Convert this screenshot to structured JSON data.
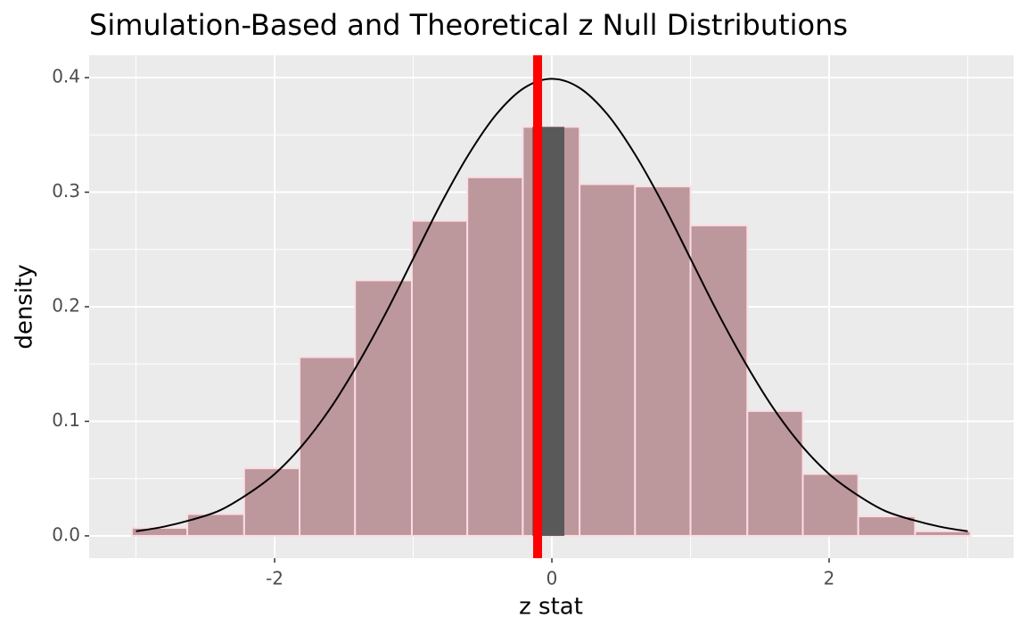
{
  "chart_data": {
    "type": "histogram",
    "title": "Simulation-Based and Theoretical z Null Distributions",
    "x_label": "z stat",
    "y_label": "density",
    "bins": [
      -3.03,
      -2.63,
      -2.22,
      -1.82,
      -1.42,
      -1.01,
      -0.61,
      -0.21,
      0.2,
      0.6,
      1.0,
      1.41,
      1.81,
      2.21,
      2.62,
      3.02
    ],
    "values": [
      0.007,
      0.019,
      0.059,
      0.156,
      0.223,
      0.275,
      0.313,
      0.357,
      0.307,
      0.305,
      0.271,
      0.109,
      0.054,
      0.017,
      0.004
    ],
    "color": "#bc979c",
    "edge_color": "#fbdde3",
    "curve": {
      "x": [
        -3,
        -2.8,
        -2.6,
        -2.4,
        -2.2,
        -2,
        -1.8,
        -1.6,
        -1.4,
        -1.2,
        -1,
        -0.8,
        -0.6,
        -0.4,
        -0.2,
        0,
        0.2,
        0.4,
        0.6,
        0.8,
        1,
        1.2,
        1.4,
        1.6,
        1.8,
        2,
        2.2,
        2.4,
        2.6,
        2.8,
        3
      ],
      "y": [
        0.004,
        0.008,
        0.014,
        0.022,
        0.036,
        0.054,
        0.079,
        0.111,
        0.15,
        0.194,
        0.242,
        0.29,
        0.333,
        0.368,
        0.391,
        0.399,
        0.391,
        0.368,
        0.333,
        0.29,
        0.242,
        0.194,
        0.15,
        0.111,
        0.079,
        0.054,
        0.036,
        0.022,
        0.014,
        0.008,
        0.004
      ],
      "color": "#000000"
    },
    "observed": -0.103,
    "observed_color": "#ff0000",
    "shade": [
      -0.14,
      0.09
    ],
    "shade_color": "#595959",
    "xlim": [
      -3.338,
      3.331
    ],
    "ylim": [
      -0.0195,
      0.4195
    ],
    "xticks": [
      -2,
      0,
      2
    ],
    "yticks": [
      {
        "value": 0,
        "label": "0.0"
      },
      0.1,
      0.2,
      0.3,
      0.4
    ],
    "x_minor_grid": [
      -3,
      -1,
      1,
      3
    ],
    "y_minor_grid": [
      0.05,
      0.15,
      0.25,
      0.35
    ],
    "grid": true
  }
}
